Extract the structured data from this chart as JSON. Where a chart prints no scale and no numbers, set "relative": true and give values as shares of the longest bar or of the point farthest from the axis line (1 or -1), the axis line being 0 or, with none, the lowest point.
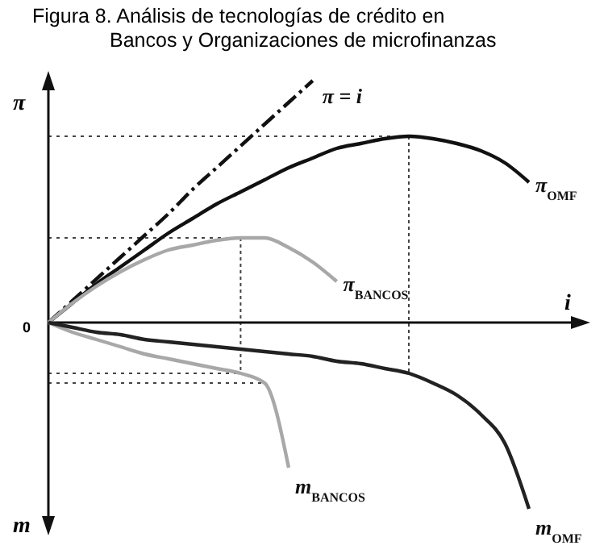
{
  "chart_data": {
    "type": "line",
    "relative": true,
    "title": "Figura 8. Análisis de tecnologías de crédito en Bancos y Organizaciones de microfinanzas",
    "xlabel": "i",
    "ylabel": "π",
    "annotations": [
      "0",
      "m"
    ],
    "marker": "none",
    "legend": false,
    "grid": false,
    "ref_lines": [
      {
        "axis": "y",
        "value": 0.77,
        "color": "#444444",
        "line_style": "dotted"
      },
      {
        "axis": "y",
        "value": 0.35,
        "color": "#444444",
        "line_style": "dotted"
      },
      {
        "axis": "y",
        "value": -0.21,
        "color": "#444444",
        "line_style": "dotted"
      },
      {
        "axis": "y",
        "value": -0.25,
        "color": "#444444",
        "line_style": "dotted"
      }
    ],
    "categories": [
      null,
      null,
      null,
      null,
      null,
      null,
      null,
      null,
      null,
      null,
      null,
      null,
      null,
      null,
      null,
      null,
      null,
      null,
      null,
      null,
      null
    ],
    "series": [
      {
        "name": "π = i",
        "color": "#111111",
        "line_style": "dashed",
        "values": [
          0,
          0.09,
          0.18,
          0.27,
          0.36,
          0.45,
          0.55,
          0.64,
          0.73,
          0.82,
          0.91,
          1.0,
          null,
          null,
          null,
          null,
          null,
          null,
          null,
          null,
          null
        ]
      },
      {
        "name": "π$_{OMF}$",
        "color": "#111111",
        "values": [
          0,
          0.08,
          0.16,
          0.23,
          0.3,
          0.37,
          0.43,
          0.49,
          0.54,
          0.59,
          0.64,
          0.68,
          0.72,
          0.74,
          0.76,
          0.77,
          0.76,
          0.74,
          0.71,
          0.66,
          0.58
        ]
      },
      {
        "name": "π$_{BANCOS}$",
        "color": "#a8a8a8",
        "values": [
          0,
          0.08,
          0.15,
          0.21,
          0.26,
          0.3,
          0.32,
          0.34,
          0.35,
          0.35,
          0.31,
          0.25,
          0.17,
          null,
          null,
          null,
          null,
          null,
          null,
          null,
          null
        ]
      },
      {
        "name": "m$_{BANCOS}$",
        "color": "#a8a8a8",
        "values": [
          0,
          -0.04,
          -0.07,
          -0.1,
          -0.13,
          -0.15,
          -0.17,
          -0.19,
          -0.21,
          -0.25,
          -0.6,
          null,
          null,
          null,
          null,
          null,
          null,
          null,
          null,
          null,
          null
        ]
      },
      {
        "name": "m$_{OMF}$",
        "color": "#222222",
        "values": [
          0,
          -0.02,
          -0.04,
          -0.05,
          -0.07,
          -0.08,
          -0.09,
          -0.1,
          -0.11,
          -0.12,
          -0.13,
          -0.14,
          -0.16,
          -0.17,
          -0.19,
          -0.21,
          -0.25,
          -0.3,
          -0.38,
          -0.5,
          -0.77
        ]
      }
    ]
  }
}
